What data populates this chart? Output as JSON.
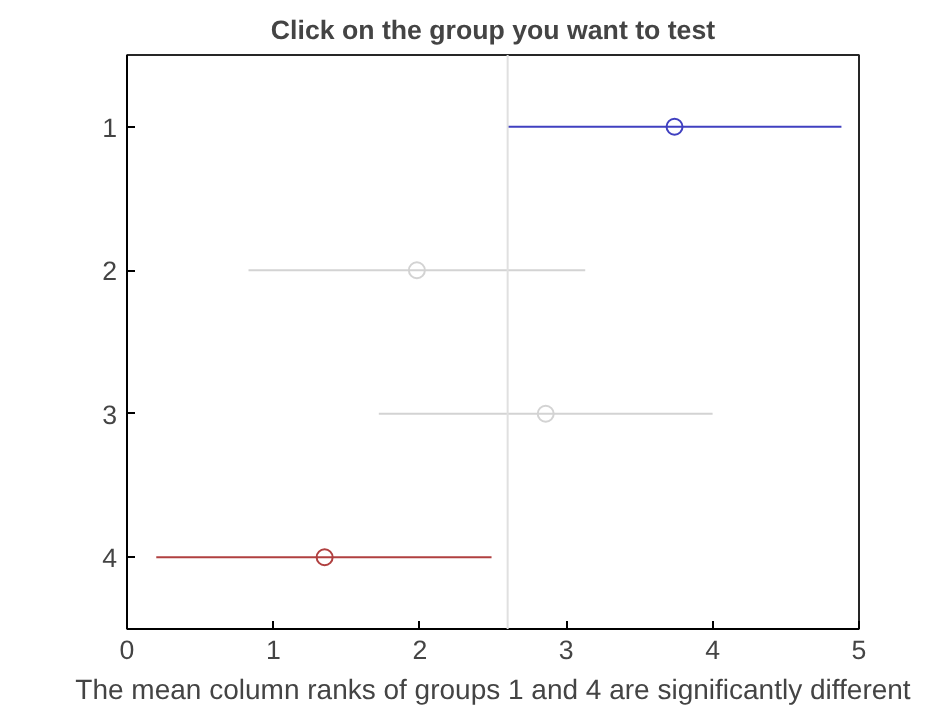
{
  "chart_data": {
    "type": "scatter",
    "orientation": "horizontal",
    "title": "Click on the group you want to test",
    "xlabel": "The mean column ranks of groups 1 and 4 are significantly different",
    "categories": [
      "1",
      "2",
      "3",
      "4"
    ],
    "values": [
      3.74,
      1.98,
      2.86,
      1.35
    ],
    "errors": [
      [
        2.6,
        4.88
      ],
      [
        0.83,
        3.13
      ],
      [
        1.72,
        4.0
      ],
      [
        0.2,
        2.49
      ]
    ],
    "colors": [
      "#4040c0",
      "#d3d3d3",
      "#d3d3d3",
      "#b04040"
    ],
    "xlim": [
      0,
      5
    ],
    "xticks": [
      0,
      1,
      2,
      3,
      4,
      5
    ],
    "ref_lines": [
      {
        "axis": "x",
        "value": 2.6,
        "color": "#e0e0e0"
      }
    ],
    "marker": "circle",
    "grid": false
  }
}
